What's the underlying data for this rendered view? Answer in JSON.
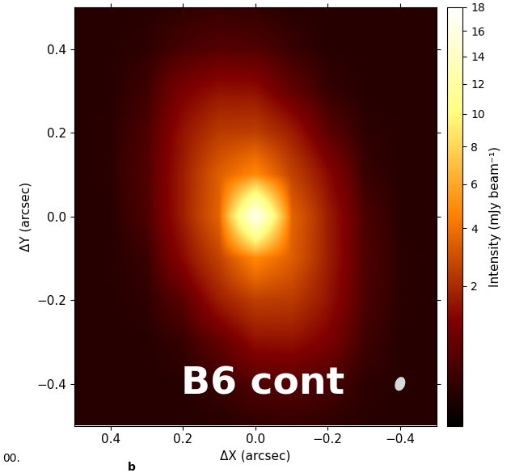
{
  "chart_data": {
    "type": "heatmap",
    "x_label": "ΔX (arcsec)",
    "y_label": "ΔY (arcsec)",
    "x": [
      -0.5,
      -0.4,
      -0.3,
      -0.2,
      -0.1,
      0.0,
      0.1,
      0.2,
      0.3,
      0.4,
      0.5
    ],
    "y": [
      -0.5,
      -0.4,
      -0.3,
      -0.2,
      -0.1,
      0.0,
      0.1,
      0.2,
      0.3,
      0.4,
      0.5
    ],
    "cells": [
      [
        0.1,
        0.1,
        0.1,
        0.15,
        0.18,
        0.15,
        0.1,
        0.1,
        0.1,
        0.1,
        0.1
      ],
      [
        0.1,
        0.1,
        0.15,
        0.35,
        0.5,
        0.45,
        0.22,
        0.1,
        0.1,
        0.1,
        0.1
      ],
      [
        0.1,
        0.1,
        0.27,
        1.05,
        1.45,
        1.4,
        0.65,
        0.2,
        0.1,
        0.1,
        0.1
      ],
      [
        0.1,
        0.12,
        0.4,
        1.5,
        2.4,
        2.5,
        1.7,
        0.55,
        0.15,
        0.1,
        0.1
      ],
      [
        0.1,
        0.12,
        0.45,
        1.7,
        3.4,
        4.8,
        2.6,
        1.3,
        0.22,
        0.1,
        0.1
      ],
      [
        0.1,
        0.1,
        0.4,
        1.7,
        3.6,
        17,
        3.6,
        1.7,
        0.4,
        0.1,
        0.1
      ],
      [
        0.1,
        0.1,
        0.22,
        1.3,
        2.6,
        4.8,
        3.4,
        1.7,
        0.45,
        0.12,
        0.1
      ],
      [
        0.1,
        0.1,
        0.15,
        0.55,
        1.7,
        2.5,
        2.4,
        1.5,
        0.4,
        0.12,
        0.1
      ],
      [
        0.1,
        0.1,
        0.1,
        0.2,
        0.65,
        1.4,
        1.45,
        1.05,
        0.27,
        0.1,
        0.1
      ],
      [
        0.1,
        0.1,
        0.1,
        0.1,
        0.22,
        0.45,
        0.5,
        0.35,
        0.15,
        0.1,
        0.1
      ],
      [
        0.1,
        0.1,
        0.1,
        0.1,
        0.1,
        0.15,
        0.18,
        0.15,
        0.1,
        0.1,
        0.1
      ]
    ],
    "xlim": [
      0.5,
      -0.5
    ],
    "ylim": [
      -0.5,
      0.5
    ],
    "xticks": [
      0.4,
      0.2,
      {
        "value": 0.0,
        "label": "0.0"
      },
      {
        "value": -0.2,
        "label": "−0.2"
      },
      {
        "value": -0.4,
        "label": "−0.4"
      }
    ],
    "yticks": [
      {
        "value": -0.4,
        "label": "−0.4"
      },
      {
        "value": -0.2,
        "label": "−0.2"
      },
      {
        "value": 0.0,
        "label": "0.0"
      },
      0.2,
      0.4
    ],
    "colorbar_label": "Intensity (mJy beam⁻¹)",
    "colorbar_range": [
      0,
      18
    ],
    "colorbar_ticks": [
      2,
      4,
      6,
      8,
      10,
      12,
      14,
      16,
      18
    ],
    "annotations": [
      "B6 cont"
    ],
    "beam": {
      "center": [
        -0.4,
        -0.4
      ],
      "major": 0.035,
      "minor": 0.027,
      "pa": 30
    },
    "fragments": [
      "00.",
      "b"
    ]
  }
}
